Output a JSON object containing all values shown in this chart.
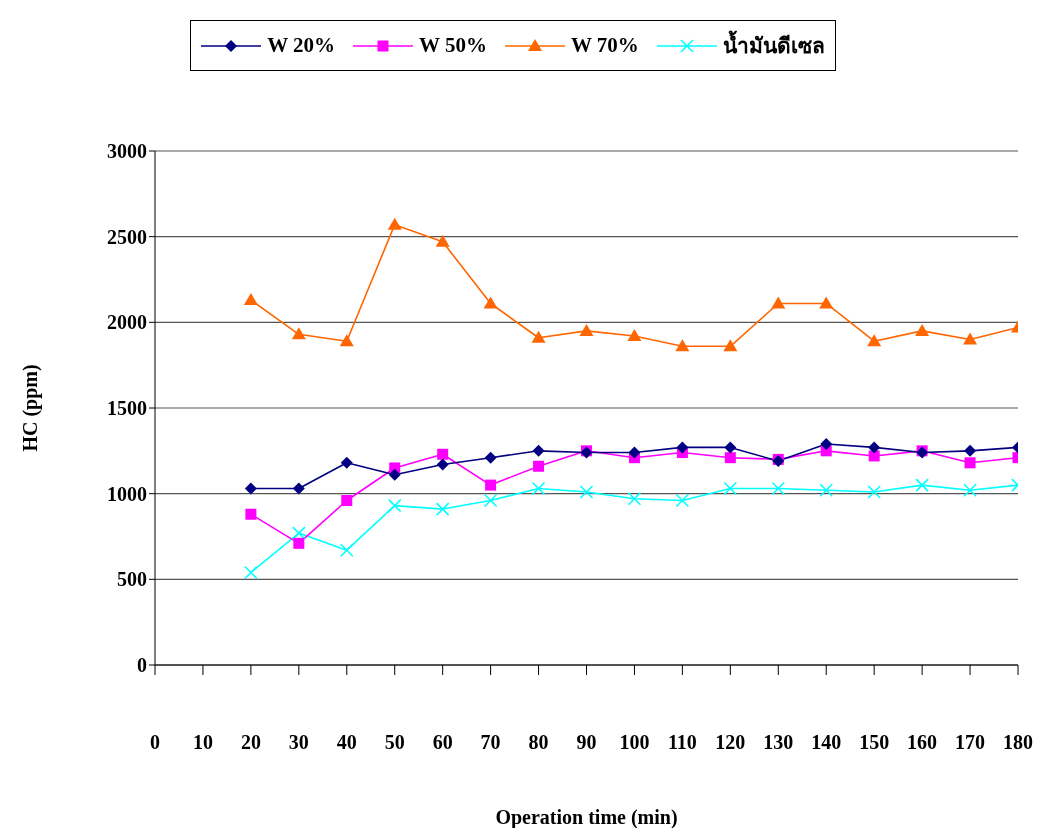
{
  "chart_data": {
    "type": "line",
    "xlabel": "Operation time (min)",
    "ylabel": "HC (ppm)",
    "x": [
      20,
      30,
      40,
      50,
      60,
      70,
      80,
      90,
      100,
      110,
      120,
      130,
      140,
      150,
      160,
      170,
      180
    ],
    "xlim": [
      0,
      180
    ],
    "xticks": [
      0,
      10,
      20,
      30,
      40,
      50,
      60,
      70,
      80,
      90,
      100,
      110,
      120,
      130,
      140,
      150,
      160,
      170,
      180
    ],
    "ylim": [
      0,
      3000
    ],
    "yticks": [
      0,
      500,
      1000,
      1500,
      2000,
      2500,
      3000
    ],
    "grid": "y",
    "legend": "top",
    "series": [
      {
        "name": "W 20%",
        "color": "#000080",
        "marker": "diamond",
        "values": [
          1030,
          1030,
          1180,
          1110,
          1170,
          1210,
          1250,
          1240,
          1240,
          1270,
          1270,
          1190,
          1290,
          1270,
          1240,
          1250,
          1270
        ]
      },
      {
        "name": "W 50%",
        "color": "#ff00ff",
        "marker": "square",
        "values": [
          880,
          710,
          960,
          1150,
          1230,
          1050,
          1160,
          1250,
          1210,
          1240,
          1210,
          1200,
          1250,
          1220,
          1250,
          1180,
          1210
        ]
      },
      {
        "name": "W 70%",
        "color": "#ff6600",
        "marker": "triangle",
        "values": [
          2130,
          1930,
          1890,
          2570,
          2470,
          2110,
          1910,
          1950,
          1920,
          1860,
          1860,
          2110,
          2110,
          1890,
          1950,
          1900,
          1970
        ]
      },
      {
        "name": "น้ำมันดีเซล",
        "color": "#00ffff",
        "marker": "cross",
        "values": [
          540,
          770,
          670,
          930,
          910,
          960,
          1030,
          1010,
          970,
          960,
          1030,
          1030,
          1020,
          1010,
          1050,
          1020,
          1050
        ]
      }
    ]
  }
}
